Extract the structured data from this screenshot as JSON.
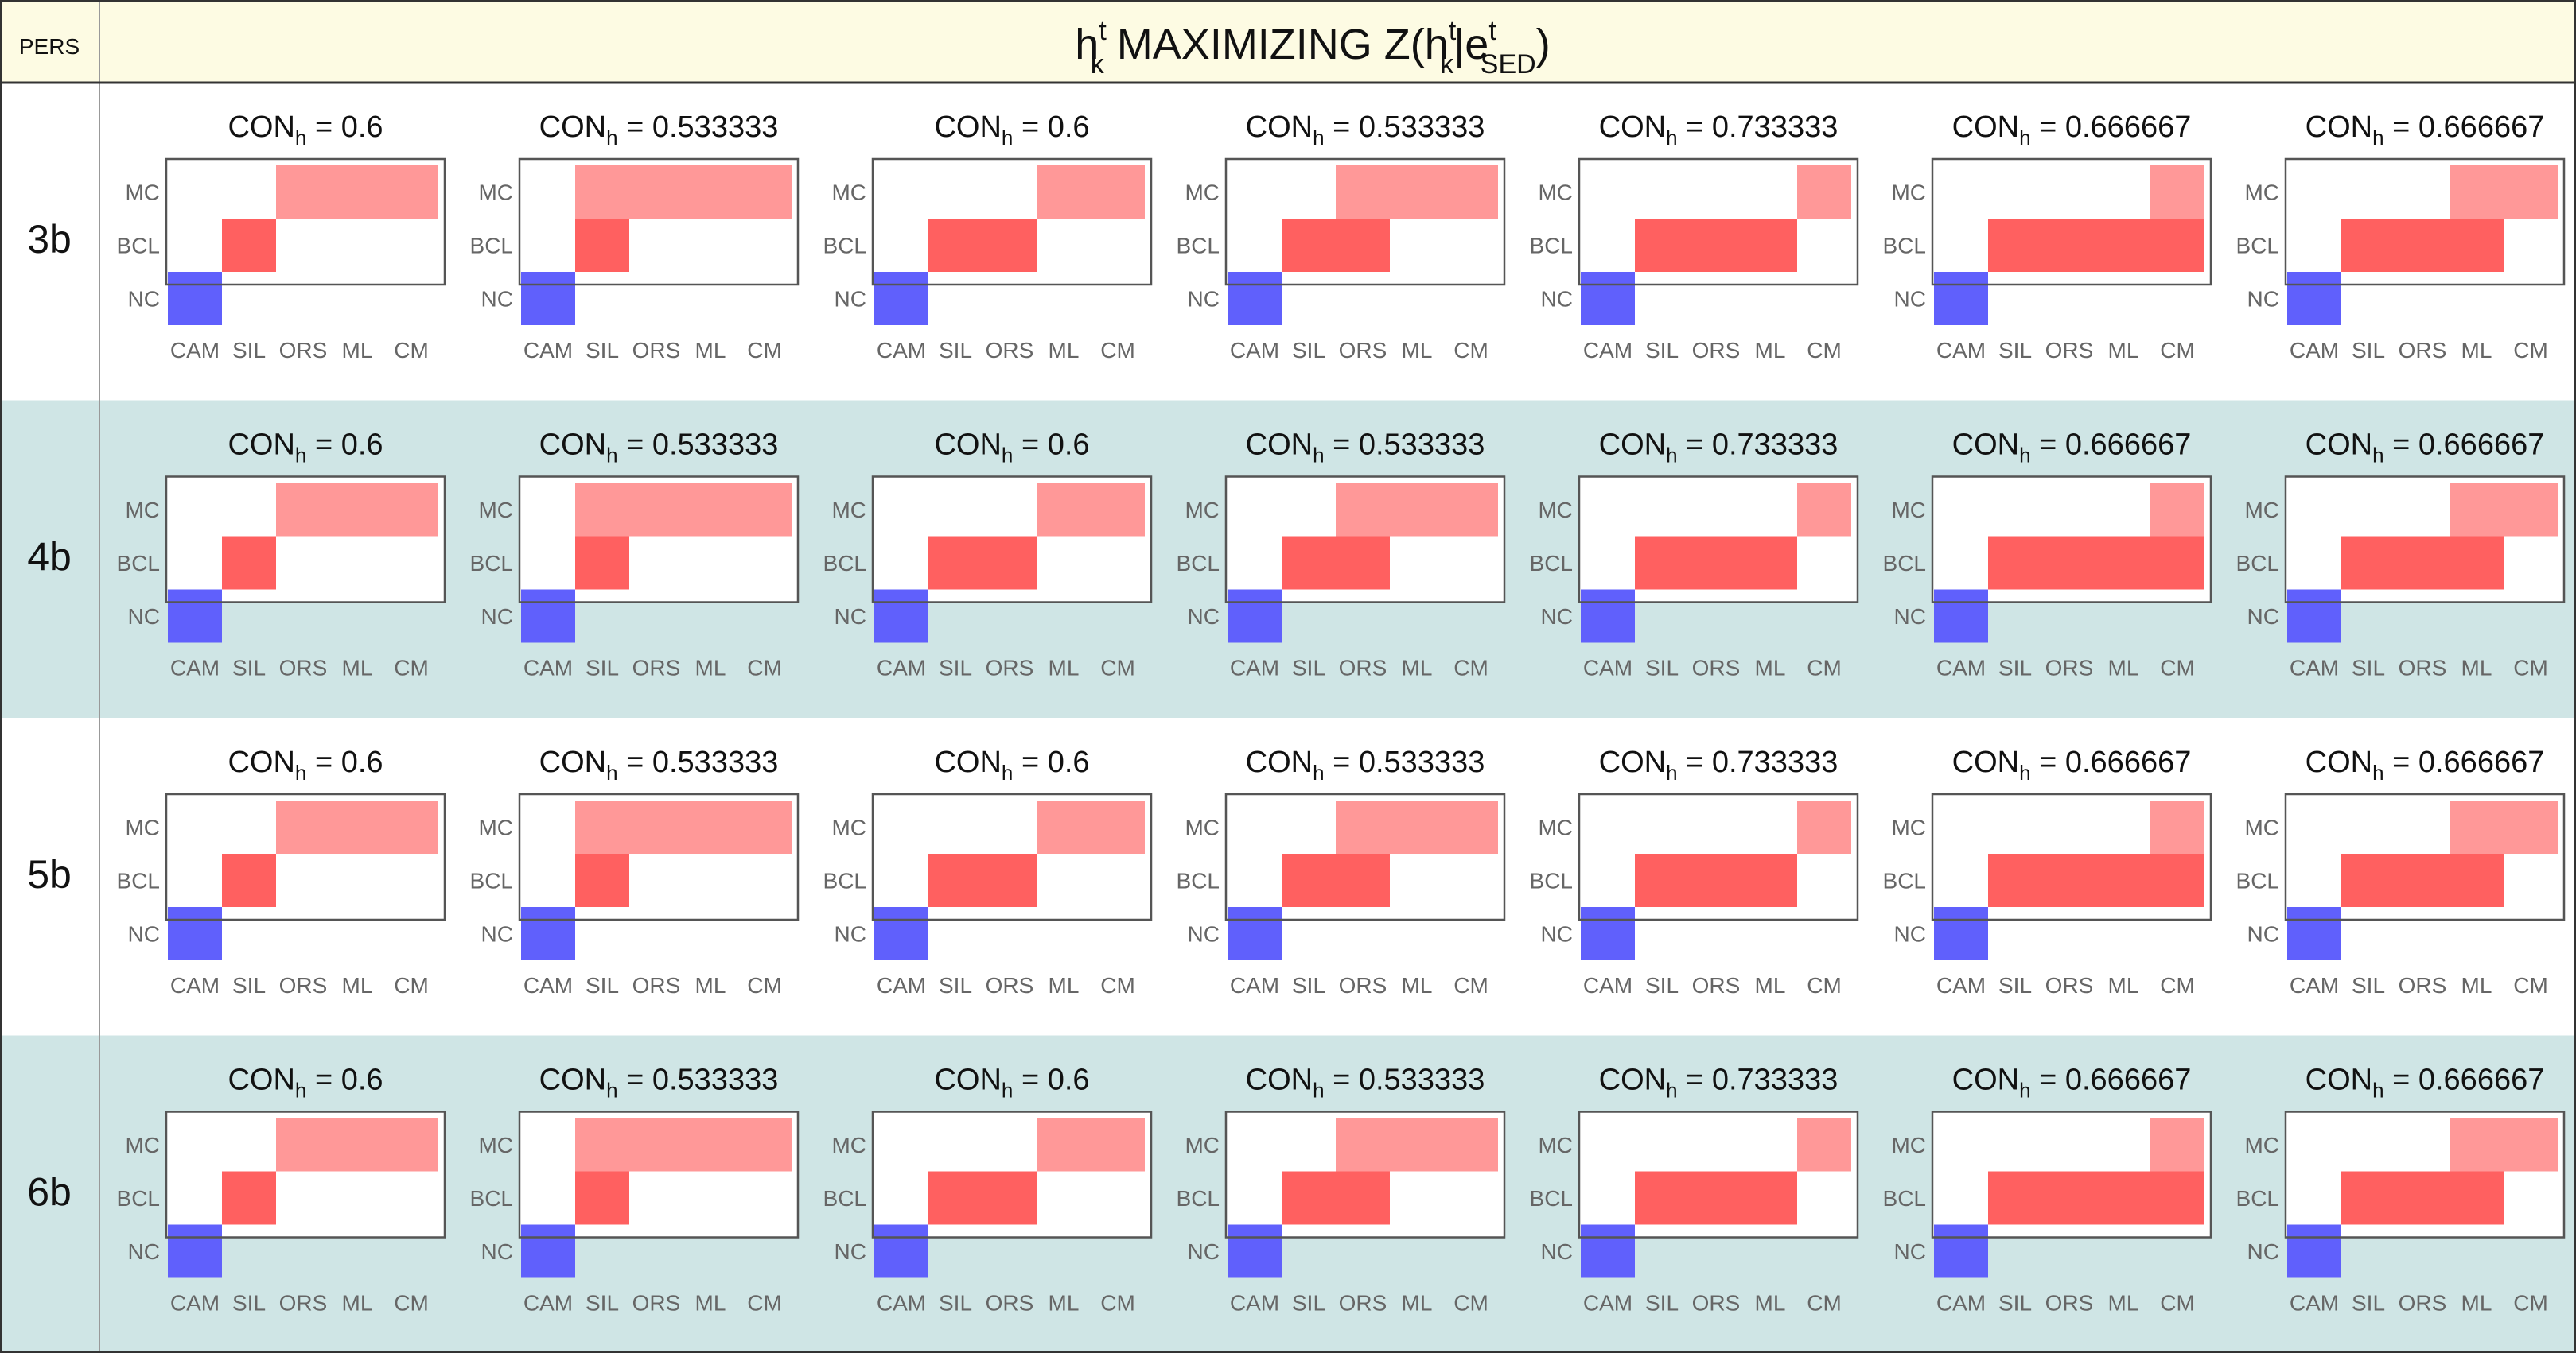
{
  "header": {
    "pers_label": "PERS",
    "title": {
      "h": "h",
      "h_sup": "t",
      "h_sub": "k",
      "maximizing": "MAXIMIZING Z(",
      "h2": "h",
      "h2_sup": "t",
      "h2_sub": "k",
      "bar_e": "|e",
      "e_sup": "t",
      "e_sub": "SED",
      "close": ")"
    }
  },
  "colors": {
    "header_bg": "#fdfbe3",
    "band_bg": "#cfe5e5",
    "white_bg": "#ffffff",
    "grid_line": "#999999",
    "frame": "#555555",
    "nc_blue": "#6060fc",
    "bcl_red": "#ff6060",
    "mc_pink": "#ff9898"
  },
  "chart_data": {
    "type": "heatmap",
    "x_categories": [
      "CAM",
      "SIL",
      "ORS",
      "ML",
      "CM"
    ],
    "y_categories": [
      "NC",
      "BCL",
      "MC"
    ],
    "con_prefix": "CON",
    "con_sub": "h",
    "con_eq": " = ",
    "rows": [
      "3b",
      "4b",
      "5b",
      "6b"
    ],
    "panels": [
      {
        "con": "0.6",
        "cells": {
          "NC": [
            0,
            0
          ],
          "BCL": [
            1,
            1
          ],
          "MC": [
            2,
            4
          ]
        }
      },
      {
        "con": "0.533333",
        "cells": {
          "NC": [
            0,
            0
          ],
          "BCL": [
            1,
            1
          ],
          "MC": [
            1,
            4
          ]
        }
      },
      {
        "con": "0.6",
        "cells": {
          "NC": [
            0,
            0
          ],
          "BCL": [
            1,
            2
          ],
          "MC": [
            3,
            4
          ]
        }
      },
      {
        "con": "0.533333",
        "cells": {
          "NC": [
            0,
            0
          ],
          "BCL": [
            1,
            2
          ],
          "MC": [
            2,
            4
          ]
        }
      },
      {
        "con": "0.733333",
        "cells": {
          "NC": [
            0,
            0
          ],
          "BCL": [
            1,
            3
          ],
          "MC": [
            4,
            4
          ]
        }
      },
      {
        "con": "0.666667",
        "cells": {
          "NC": [
            0,
            0
          ],
          "BCL": [
            1,
            4
          ],
          "MC": [
            4,
            4
          ]
        }
      },
      {
        "con": "0.666667",
        "cells": {
          "NC": [
            0,
            0
          ],
          "BCL": [
            1,
            3
          ],
          "MC": [
            3,
            4
          ]
        }
      }
    ]
  }
}
